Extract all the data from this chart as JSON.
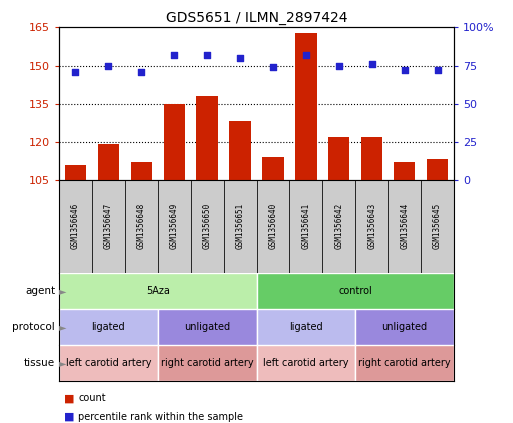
{
  "title": "GDS5651 / ILMN_2897424",
  "samples": [
    "GSM1356646",
    "GSM1356647",
    "GSM1356648",
    "GSM1356649",
    "GSM1356650",
    "GSM1356651",
    "GSM1356640",
    "GSM1356641",
    "GSM1356642",
    "GSM1356643",
    "GSM1356644",
    "GSM1356645"
  ],
  "counts": [
    111,
    119,
    112,
    135,
    138,
    128,
    114,
    163,
    122,
    122,
    112,
    113
  ],
  "percentiles": [
    71,
    75,
    71,
    82,
    82,
    80,
    74,
    82,
    75,
    76,
    72,
    72
  ],
  "ylim_left": [
    105,
    165
  ],
  "ylim_right": [
    0,
    100
  ],
  "yticks_left": [
    105,
    120,
    135,
    150,
    165
  ],
  "yticks_right": [
    0,
    25,
    50,
    75,
    100
  ],
  "bar_color": "#cc2200",
  "dot_color": "#2222cc",
  "sample_box_color": "#cccccc",
  "agent_labels": [
    {
      "text": "5Aza",
      "start": 0,
      "end": 6,
      "color": "#bbeeaa"
    },
    {
      "text": "control",
      "start": 6,
      "end": 12,
      "color": "#66cc66"
    }
  ],
  "protocol_labels": [
    {
      "text": "ligated",
      "start": 0,
      "end": 3,
      "color": "#bbbbee"
    },
    {
      "text": "unligated",
      "start": 3,
      "end": 6,
      "color": "#9988dd"
    },
    {
      "text": "ligated",
      "start": 6,
      "end": 9,
      "color": "#bbbbee"
    },
    {
      "text": "unligated",
      "start": 9,
      "end": 12,
      "color": "#9988dd"
    }
  ],
  "tissue_labels": [
    {
      "text": "left carotid artery",
      "start": 0,
      "end": 3,
      "color": "#eebcbc"
    },
    {
      "text": "right carotid artery",
      "start": 3,
      "end": 6,
      "color": "#dd9999"
    },
    {
      "text": "left carotid artery",
      "start": 6,
      "end": 9,
      "color": "#eebcbc"
    },
    {
      "text": "right carotid artery",
      "start": 9,
      "end": 12,
      "color": "#dd9999"
    }
  ],
  "row_labels": [
    "agent",
    "protocol",
    "tissue"
  ],
  "legend_bar_label": "count",
  "legend_dot_label": "percentile rank within the sample"
}
